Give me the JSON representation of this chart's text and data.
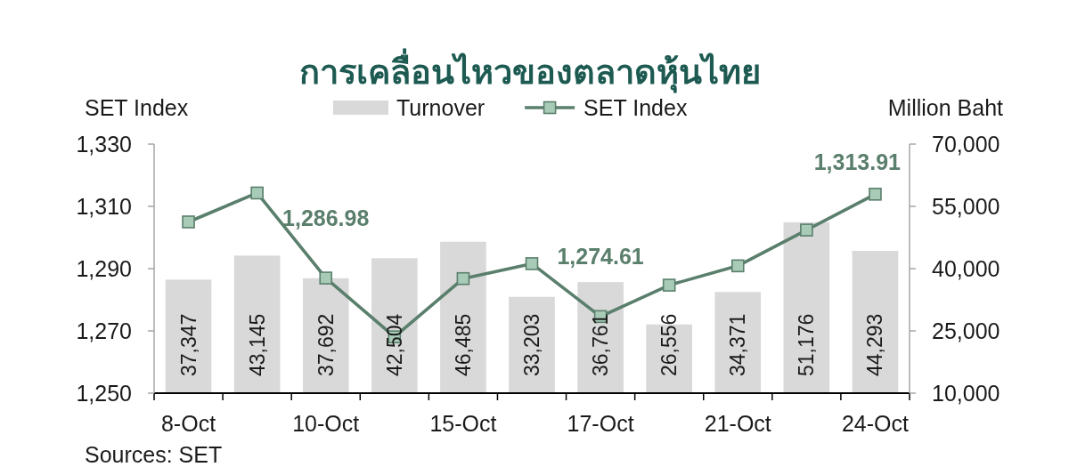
{
  "chart_data": {
    "type": "bar",
    "title": "การเคลื่อนไหวของตลาดหุ้นไทย",
    "ylabel": "SET Index",
    "y2label": "Million Baht",
    "categories": [
      "8-Oct",
      null,
      "10-Oct",
      null,
      "15-Oct",
      null,
      "17-Oct",
      null,
      "21-Oct",
      null,
      "24-Oct"
    ],
    "series": [
      {
        "name": "Turnover",
        "axis": "y2",
        "color": "#d9d9d9",
        "values": [
          37347,
          43145,
          37692,
          42504,
          46485,
          33203,
          36761,
          26556,
          34371,
          51176,
          44293
        ],
        "value_labels": [
          "37,347",
          "43,145",
          "37,692",
          "42,504",
          "46,485",
          "33,203",
          "36,761",
          "26,556",
          "34,371",
          "51,176",
          "44,293"
        ]
      },
      {
        "name": "SET Index",
        "type": "line",
        "axis": "y",
        "color": "#5a7f6c",
        "values": [
          1305.0,
          1314.3,
          1286.98,
          1268.1,
          1286.8,
          1291.6,
          1274.61,
          1284.7,
          1290.9,
          1302.4,
          1313.91
        ],
        "value_labels": [
          null,
          null,
          "1,286.98",
          null,
          null,
          null,
          "1,274.61",
          null,
          null,
          null,
          "1,313.91"
        ]
      }
    ],
    "ylim": [
      1250,
      1330
    ],
    "yticks": [
      {
        "value": 1250,
        "label": "1,250"
      },
      {
        "value": 1270,
        "label": "1,270"
      },
      {
        "value": 1290,
        "label": "1,290"
      },
      {
        "value": 1310,
        "label": "1,310"
      },
      {
        "value": 1330,
        "label": "1,330"
      }
    ],
    "y2lim": [
      10000,
      70000
    ],
    "y2ticks": [
      {
        "value": 10000,
        "label": "10,000"
      },
      {
        "value": 25000,
        "label": "25,000"
      },
      {
        "value": 40000,
        "label": "40,000"
      },
      {
        "value": 55000,
        "label": "55,000"
      },
      {
        "value": 70000,
        "label": "70,000"
      }
    ],
    "legend": "top",
    "marker": "square",
    "grid": false,
    "annotations": [
      "Sources: SET"
    ]
  }
}
